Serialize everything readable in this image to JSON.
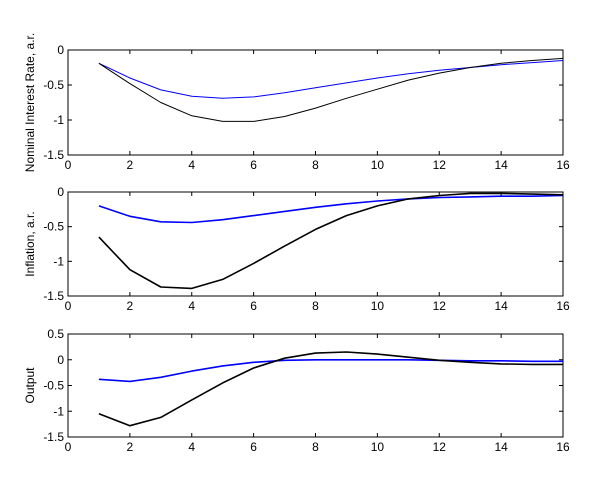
{
  "chart_data": [
    {
      "type": "line",
      "ylabel": "Nominal Interest Rate, a.r.",
      "xlabel": "",
      "title": "",
      "xlim": [
        0,
        16
      ],
      "ylim": [
        -1.5,
        0
      ],
      "xticks": [
        0,
        2,
        4,
        6,
        8,
        10,
        12,
        14,
        16
      ],
      "yticks": [
        0,
        -0.5,
        -1,
        -1.5
      ],
      "ytick_labels": [
        "0",
        "-0.5",
        "-1",
        "-1.5"
      ],
      "grid": false,
      "x": [
        1,
        2,
        3,
        4,
        5,
        6,
        7,
        8,
        9,
        10,
        11,
        12,
        13,
        14,
        15,
        16
      ],
      "series": [
        {
          "color": "#0000ff",
          "values": [
            -0.19,
            -0.4,
            -0.57,
            -0.66,
            -0.69,
            -0.67,
            -0.61,
            -0.54,
            -0.47,
            -0.4,
            -0.34,
            -0.29,
            -0.25,
            -0.21,
            -0.18,
            -0.15
          ]
        },
        {
          "color": "#000000",
          "values": [
            -0.19,
            -0.48,
            -0.75,
            -0.94,
            -1.02,
            -1.02,
            -0.95,
            -0.83,
            -0.69,
            -0.56,
            -0.43,
            -0.33,
            -0.25,
            -0.19,
            -0.15,
            -0.12
          ]
        }
      ]
    },
    {
      "type": "line",
      "ylabel": "Inflation, a.r.",
      "xlabel": "",
      "title": "",
      "xlim": [
        0,
        16
      ],
      "ylim": [
        -1.5,
        0
      ],
      "xticks": [
        0,
        2,
        4,
        6,
        8,
        10,
        12,
        14,
        16
      ],
      "yticks": [
        0,
        -0.5,
        -1,
        -1.5
      ],
      "ytick_labels": [
        "0",
        "-0.5",
        "-1",
        "-1.5"
      ],
      "grid": false,
      "x": [
        1,
        2,
        3,
        4,
        5,
        6,
        7,
        8,
        9,
        10,
        11,
        12,
        13,
        14,
        15,
        16
      ],
      "series": [
        {
          "color": "#0000ff",
          "values": [
            -0.2,
            -0.35,
            -0.43,
            -0.44,
            -0.4,
            -0.34,
            -0.28,
            -0.22,
            -0.17,
            -0.13,
            -0.1,
            -0.08,
            -0.07,
            -0.06,
            -0.06,
            -0.05
          ]
        },
        {
          "color": "#000000",
          "values": [
            -0.65,
            -1.12,
            -1.37,
            -1.39,
            -1.26,
            -1.03,
            -0.78,
            -0.54,
            -0.34,
            -0.2,
            -0.1,
            -0.05,
            -0.02,
            -0.02,
            -0.03,
            -0.04
          ]
        }
      ]
    },
    {
      "type": "line",
      "ylabel": "Output",
      "xlabel": "",
      "title": "",
      "xlim": [
        0,
        16
      ],
      "ylim": [
        -1.5,
        0.5
      ],
      "xticks": [
        0,
        2,
        4,
        6,
        8,
        10,
        12,
        14,
        16
      ],
      "yticks": [
        0.5,
        0,
        -0.5,
        -1,
        -1.5
      ],
      "ytick_labels": [
        "0.5",
        "0",
        "-0.5",
        "-1",
        "-1.5"
      ],
      "grid": false,
      "x": [
        1,
        2,
        3,
        4,
        5,
        6,
        7,
        8,
        9,
        10,
        11,
        12,
        13,
        14,
        15,
        16
      ],
      "series": [
        {
          "color": "#0000ff",
          "values": [
            -0.38,
            -0.42,
            -0.34,
            -0.22,
            -0.12,
            -0.05,
            -0.01,
            0.0,
            0.0,
            0.0,
            0.0,
            -0.01,
            -0.02,
            -0.02,
            -0.03,
            -0.03
          ]
        },
        {
          "color": "#000000",
          "values": [
            -1.05,
            -1.28,
            -1.12,
            -0.78,
            -0.45,
            -0.16,
            0.03,
            0.13,
            0.15,
            0.11,
            0.05,
            -0.01,
            -0.05,
            -0.08,
            -0.09,
            -0.09
          ]
        }
      ]
    }
  ]
}
